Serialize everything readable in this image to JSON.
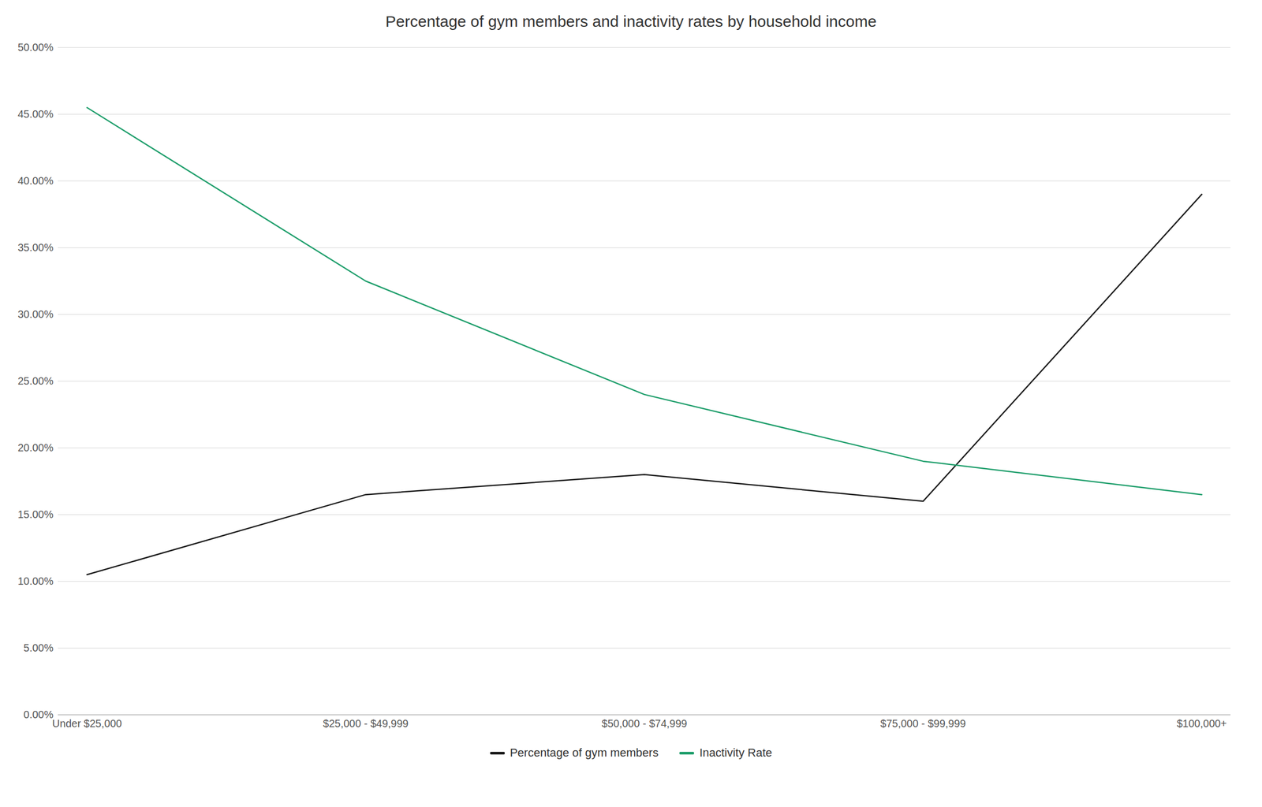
{
  "chart_data": {
    "type": "line",
    "title": "Percentage of gym members and inactivity rates by household income",
    "categories": [
      "Under $25,000",
      "$25,000 - $49,999",
      "$50,000 - $74,999",
      "$75,000 - $99,999",
      "$100,000+"
    ],
    "series": [
      {
        "name": "Percentage of gym members",
        "color": "#1a1a1a",
        "values": [
          0.105,
          0.165,
          0.18,
          0.16,
          0.39
        ]
      },
      {
        "name": "Inactivity Rate",
        "color": "#1e9e6b",
        "values": [
          0.455,
          0.325,
          0.24,
          0.19,
          0.165
        ]
      }
    ],
    "ylim": [
      0.0,
      0.5
    ],
    "yticks": [
      {
        "value": 0.0,
        "label": "0.00%"
      },
      {
        "value": 0.05,
        "label": "5.00%"
      },
      {
        "value": 0.1,
        "label": "10.00%"
      },
      {
        "value": 0.15,
        "label": "15.00%"
      },
      {
        "value": 0.2,
        "label": "20.00%"
      },
      {
        "value": 0.25,
        "label": "25.00%"
      },
      {
        "value": 0.3,
        "label": "30.00%"
      },
      {
        "value": 0.35,
        "label": "35.00%"
      },
      {
        "value": 0.4,
        "label": "40.00%"
      },
      {
        "value": 0.45,
        "label": "45.00%"
      },
      {
        "value": 0.5,
        "label": "50.00%"
      }
    ],
    "grid": true,
    "legend": "bottom"
  }
}
